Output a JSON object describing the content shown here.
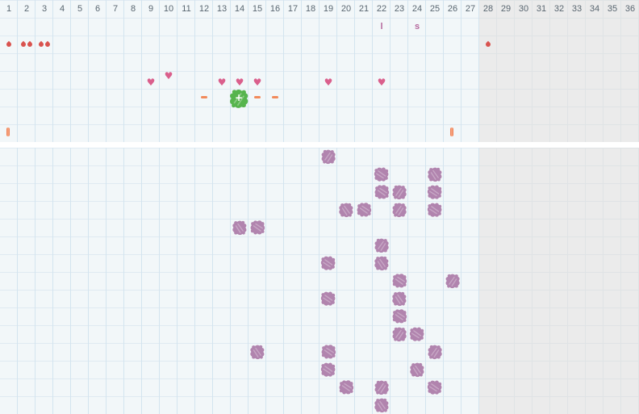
{
  "colors": {
    "background": "#f2f7f9",
    "gridline": "#d3e4ef",
    "gridline_h": "#dfeaf2",
    "gray_zone": "#ebebeb",
    "gray_gridline": "#dfe3e5",
    "day_number": "#596670",
    "bleeding": "#d9534f",
    "heart": "#da5f8c",
    "mucus_dash": "#f28a5a",
    "peak_green": "#56b44d",
    "temperature_scribble": "#b184ae",
    "letter": "#b4679c",
    "cycle_bar": "#eb7045"
  },
  "grid": {
    "columns": 36,
    "cell_size": 22,
    "gray_from_column": 28,
    "top_section_rows": 8,
    "bottom_section_rows": 15,
    "day_numbers": [
      1,
      2,
      3,
      4,
      5,
      6,
      7,
      8,
      9,
      10,
      11,
      12,
      13,
      14,
      15,
      16,
      17,
      18,
      19,
      20,
      21,
      22,
      23,
      24,
      25,
      26,
      27,
      28,
      29,
      30,
      31,
      32,
      33,
      34,
      35,
      36
    ]
  },
  "top_markers": {
    "letters": [
      {
        "col": 22,
        "row": 2,
        "text": "l"
      },
      {
        "col": 24,
        "row": 2,
        "text": "s"
      }
    ],
    "bleeding": [
      {
        "col": 1,
        "drops": 1
      },
      {
        "col": 2,
        "drops": 2
      },
      {
        "col": 3,
        "drops": 2
      },
      {
        "col": 28,
        "drops": 1
      }
    ],
    "hearts": [
      {
        "col": 9,
        "raised": false
      },
      {
        "col": 10,
        "raised": true
      },
      {
        "col": 13,
        "raised": false
      },
      {
        "col": 14,
        "raised": false
      },
      {
        "col": 15,
        "raised": false
      },
      {
        "col": 19,
        "raised": false
      },
      {
        "col": 22,
        "raised": false
      }
    ],
    "dashes": [
      {
        "col": 12
      },
      {
        "col": 15
      },
      {
        "col": 16
      }
    ],
    "peak": {
      "col": 14,
      "symbol": "+"
    },
    "cycle_bars": [
      {
        "col": 1
      },
      {
        "col": 26
      }
    ]
  },
  "bottom_markers": {
    "scribbles": [
      {
        "col": 19,
        "row": 0
      },
      {
        "col": 22,
        "row": 1
      },
      {
        "col": 25,
        "row": 1
      },
      {
        "col": 22,
        "row": 2
      },
      {
        "col": 23,
        "row": 2
      },
      {
        "col": 25,
        "row": 2
      },
      {
        "col": 20,
        "row": 3
      },
      {
        "col": 21,
        "row": 3
      },
      {
        "col": 23,
        "row": 3
      },
      {
        "col": 25,
        "row": 3
      },
      {
        "col": 14,
        "row": 4
      },
      {
        "col": 15,
        "row": 4
      },
      {
        "col": 22,
        "row": 5
      },
      {
        "col": 19,
        "row": 6
      },
      {
        "col": 22,
        "row": 6
      },
      {
        "col": 23,
        "row": 7
      },
      {
        "col": 26,
        "row": 7
      },
      {
        "col": 19,
        "row": 8
      },
      {
        "col": 23,
        "row": 8
      },
      {
        "col": 23,
        "row": 9
      },
      {
        "col": 23,
        "row": 10
      },
      {
        "col": 24,
        "row": 10
      },
      {
        "col": 15,
        "row": 11
      },
      {
        "col": 19,
        "row": 11
      },
      {
        "col": 25,
        "row": 11
      },
      {
        "col": 19,
        "row": 12
      },
      {
        "col": 24,
        "row": 12
      },
      {
        "col": 20,
        "row": 13
      },
      {
        "col": 22,
        "row": 13
      },
      {
        "col": 25,
        "row": 13
      },
      {
        "col": 22,
        "row": 14
      }
    ]
  }
}
